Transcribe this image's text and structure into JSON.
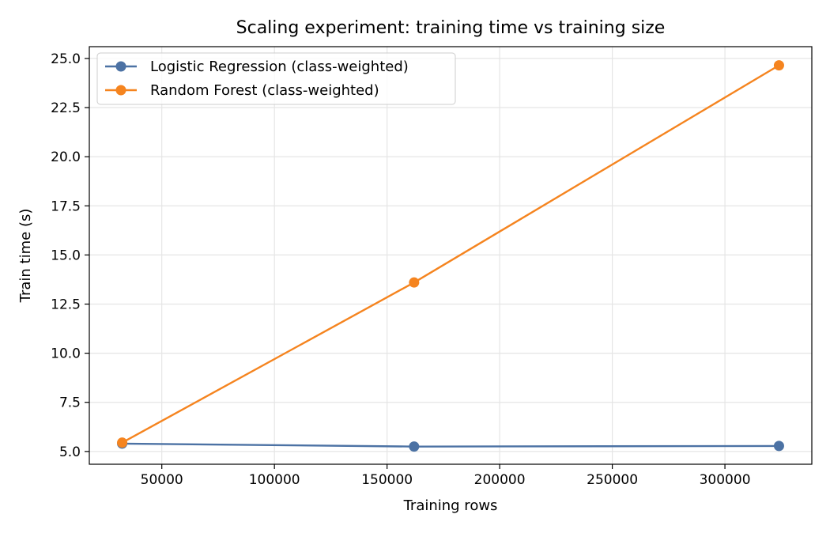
{
  "chart_data": {
    "type": "line",
    "title": "Scaling experiment: training time vs training size",
    "xlabel": "Training rows",
    "ylabel": "Train time (s)",
    "x": [
      32400,
      162000,
      324000
    ],
    "xlim": [
      17820,
      338580
    ],
    "ylim": [
      4.35,
      25.6
    ],
    "xticks": [
      50000,
      100000,
      150000,
      200000,
      250000,
      300000
    ],
    "xtick_labels": [
      "50000",
      "100000",
      "150000",
      "200000",
      "250000",
      "300000"
    ],
    "yticks": [
      5.0,
      7.5,
      10.0,
      12.5,
      15.0,
      17.5,
      20.0,
      22.5,
      25.0
    ],
    "ytick_labels": [
      "5.0",
      "7.5",
      "10.0",
      "12.5",
      "15.0",
      "17.5",
      "20.0",
      "22.5",
      "25.0"
    ],
    "grid": true,
    "legend_position": "upper-left",
    "series": [
      {
        "name": "Logistic Regression (class-weighted)",
        "color": "#4c72a4",
        "marker": "circle",
        "values": [
          5.4,
          5.25,
          5.28
        ]
      },
      {
        "name": "Random Forest (class-weighted)",
        "color": "#f5841f",
        "marker": "circle",
        "values": [
          5.45,
          13.6,
          24.65
        ]
      }
    ]
  }
}
